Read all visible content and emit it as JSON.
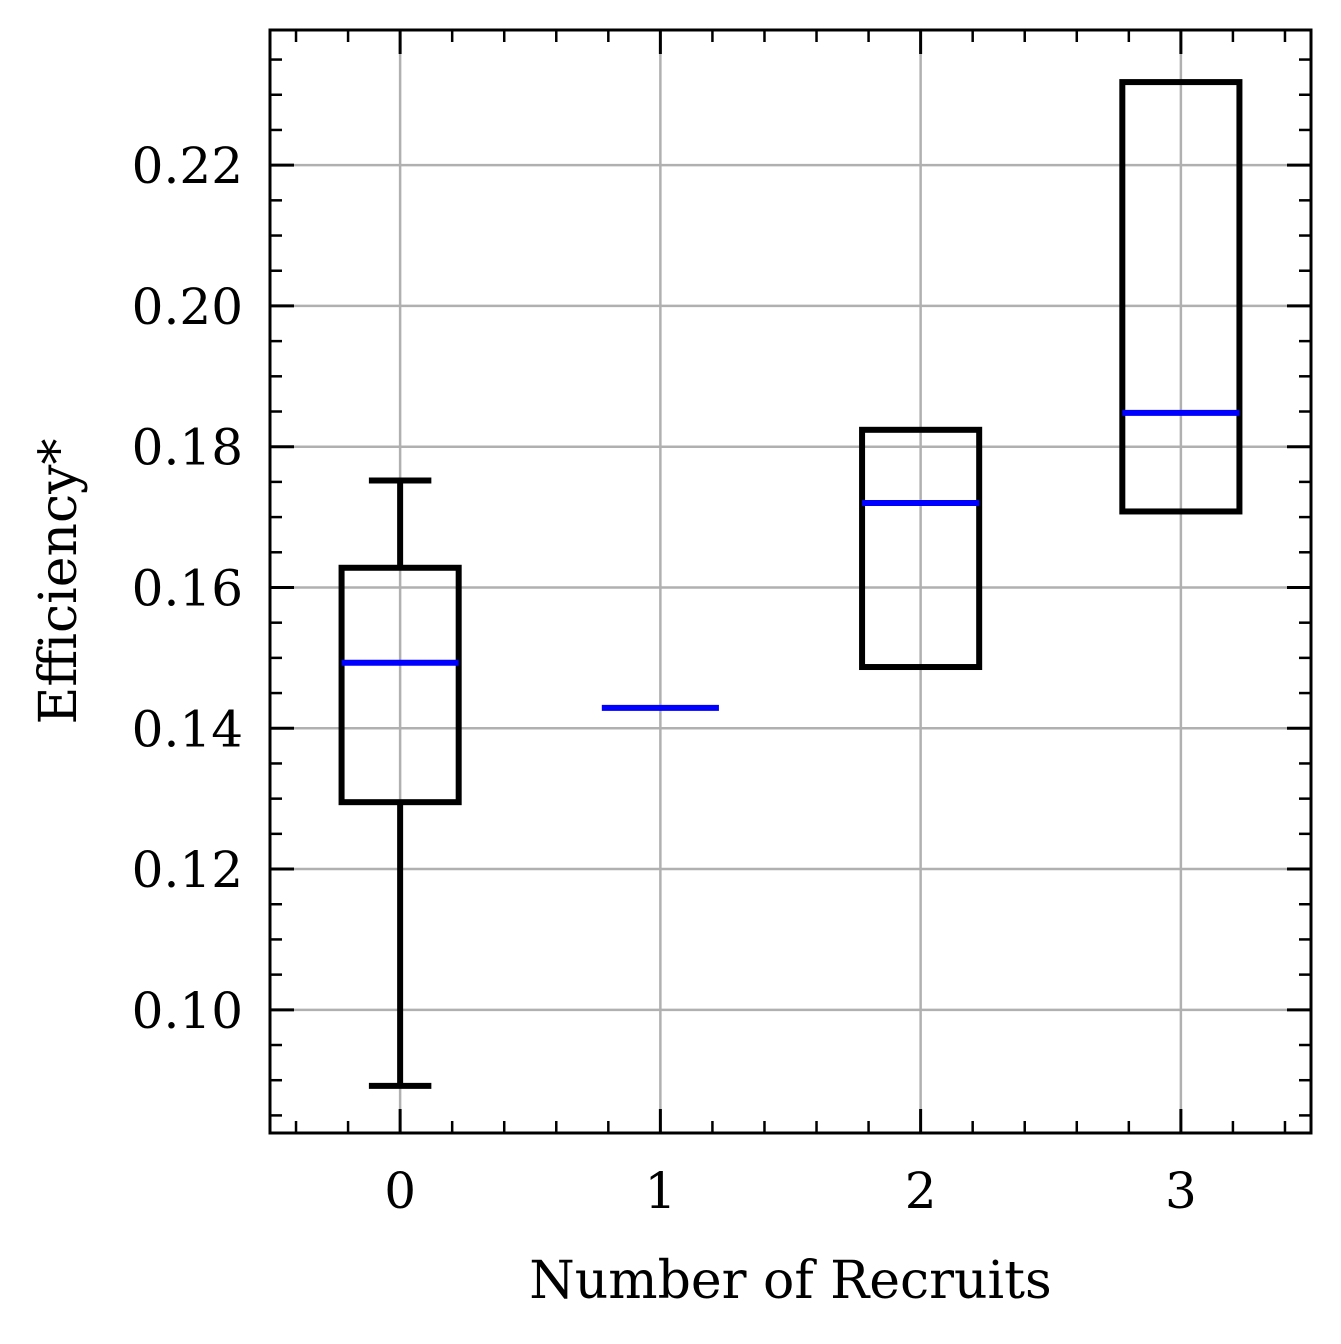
{
  "chart_data": {
    "type": "box",
    "xlabel": "Number of Recruits",
    "ylabel": "Efficiency*",
    "categories": [
      "0",
      "1",
      "2",
      "3"
    ],
    "x_ticks": [
      "0",
      "1",
      "2",
      "3"
    ],
    "y_ticks": [
      "0.10",
      "0.12",
      "0.14",
      "0.16",
      "0.18",
      "0.20",
      "0.22"
    ],
    "xlim": [
      -0.5,
      3.5
    ],
    "ylim": [
      0.0825,
      0.2392
    ],
    "grid": true,
    "boxes": [
      {
        "category": "0",
        "whisker_low": 0.0892,
        "q1": 0.1295,
        "median": 0.1493,
        "q3": 0.1628,
        "whisker_high": 0.1752
      },
      {
        "category": "1",
        "whisker_low": 0.1429,
        "q1": 0.1429,
        "median": 0.1429,
        "q3": 0.1429,
        "whisker_high": 0.1429
      },
      {
        "category": "2",
        "whisker_low": 0.1487,
        "q1": 0.1487,
        "median": 0.172,
        "q3": 0.1824,
        "whisker_high": 0.1824
      },
      {
        "category": "3",
        "whisker_low": 0.1708,
        "q1": 0.1708,
        "median": 0.1848,
        "q3": 0.2318,
        "whisker_high": 0.2318
      }
    ],
    "colors": {
      "box": "#000000",
      "median": "#0000ff",
      "grid": "#b0b0b0"
    }
  }
}
